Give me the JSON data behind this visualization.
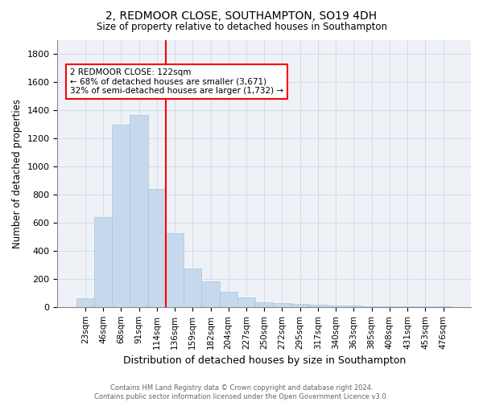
{
  "title": "2, REDMOOR CLOSE, SOUTHAMPTON, SO19 4DH",
  "subtitle": "Size of property relative to detached houses in Southampton",
  "xlabel": "Distribution of detached houses by size in Southampton",
  "ylabel": "Number of detached properties",
  "categories": [
    "23sqm",
    "46sqm",
    "68sqm",
    "91sqm",
    "114sqm",
    "136sqm",
    "159sqm",
    "182sqm",
    "204sqm",
    "227sqm",
    "250sqm",
    "272sqm",
    "295sqm",
    "317sqm",
    "340sqm",
    "363sqm",
    "385sqm",
    "408sqm",
    "431sqm",
    "453sqm",
    "476sqm"
  ],
  "values": [
    60,
    640,
    1300,
    1370,
    840,
    525,
    275,
    180,
    105,
    65,
    35,
    25,
    20,
    15,
    10,
    8,
    5,
    4,
    3,
    3,
    2
  ],
  "bar_color": "#c6d9ec",
  "bar_edge_color": "#aac4d8",
  "annotation_line1": "2 REDMOOR CLOSE: 122sqm",
  "annotation_line2": "← 68% of detached houses are smaller (3,671)",
  "annotation_line3": "32% of semi-detached houses are larger (1,732) →",
  "annotation_box_color": "white",
  "annotation_box_edge_color": "red",
  "ylim": [
    0,
    1900
  ],
  "yticks": [
    0,
    200,
    400,
    600,
    800,
    1000,
    1200,
    1400,
    1600,
    1800
  ],
  "footer_line1": "Contains HM Land Registry data © Crown copyright and database right 2024.",
  "footer_line2": "Contains public sector information licensed under the Open Government Licence v3.0.",
  "bg_color": "#eef2f7",
  "grid_color": "#d0d8e4",
  "title_fontsize": 10,
  "subtitle_fontsize": 8.5,
  "red_line_x": 4.5
}
